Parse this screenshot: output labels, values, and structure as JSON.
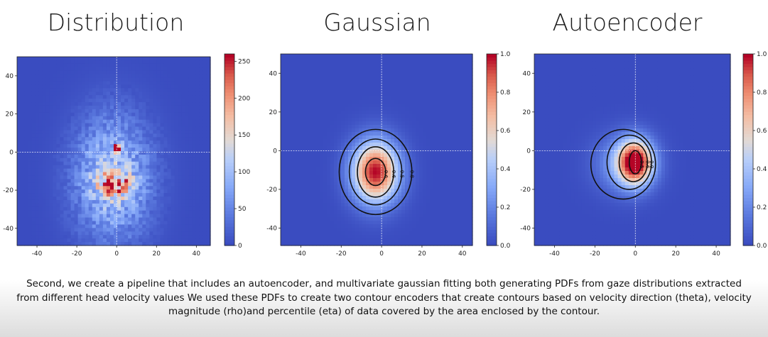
{
  "chart_data": [
    {
      "type": "heatmap",
      "title": "Distribution",
      "x_ticks": [
        -40,
        -20,
        0,
        20,
        40
      ],
      "y_ticks": [
        40,
        20,
        0,
        -20,
        -40
      ],
      "xlim": [
        -50,
        47
      ],
      "ylim": [
        -49,
        50
      ],
      "colormap": "coolwarm",
      "colorbar": {
        "ticks": [
          "0",
          "50",
          "100",
          "150",
          "200",
          "250"
        ],
        "range": [
          0,
          260
        ]
      },
      "blobs": [
        {
          "cx": -2,
          "cy": -14,
          "sx": 13,
          "sy": 22,
          "peak": 0.45
        },
        {
          "cx": 0,
          "cy": 2,
          "sx": 1.2,
          "sy": 1.2,
          "peak": 1.0
        },
        {
          "cx": -1,
          "cy": -17,
          "sx": 6,
          "sy": 4,
          "peak": 0.55
        }
      ],
      "reference_lines": {
        "x": 0,
        "y": 0
      },
      "contours": []
    },
    {
      "type": "heatmap",
      "title": "Gaussian",
      "x_ticks": [
        -40,
        -20,
        0,
        20,
        40
      ],
      "y_ticks": [
        40,
        20,
        0,
        -20,
        -40
      ],
      "xlim": [
        -50,
        45
      ],
      "ylim": [
        -49,
        50
      ],
      "colormap": "coolwarm",
      "colorbar": {
        "ticks": [
          "0.0",
          "0.2",
          "0.4",
          "0.6",
          "0.8",
          "1.0"
        ],
        "range": [
          0,
          1
        ]
      },
      "blobs": [
        {
          "cx": -3,
          "cy": -11,
          "sx": 8,
          "sy": 11,
          "peak": 1.0
        }
      ],
      "reference_lines": {
        "x": 0,
        "y": 0
      },
      "contours": [
        {
          "label": "0.6",
          "cx": -3,
          "cy": -11,
          "rx": 5,
          "ry": 7
        },
        {
          "label": "0.6",
          "cx": -3,
          "cy": -11,
          "rx": 9,
          "ry": 13
        },
        {
          "label": "0.5",
          "cx": -3,
          "cy": -11,
          "rx": 13,
          "ry": 17
        },
        {
          "label": "0.8",
          "cx": -3,
          "cy": -11,
          "rx": 18,
          "ry": 22
        }
      ]
    },
    {
      "type": "heatmap",
      "title": "Autoencoder",
      "x_ticks": [
        -40,
        -20,
        0,
        20,
        40
      ],
      "y_ticks": [
        40,
        20,
        0,
        -20,
        -40
      ],
      "xlim": [
        -50,
        47
      ],
      "ylim": [
        -49,
        50
      ],
      "colormap": "coolwarm",
      "colorbar": {
        "ticks": [
          "0.0",
          "0.2",
          "0.4",
          "0.6",
          "0.8",
          "1.0"
        ],
        "range": [
          0,
          1
        ]
      },
      "blobs": [
        {
          "cx": 0,
          "cy": -6,
          "sx": 6,
          "sy": 8,
          "peak": 1.0
        },
        {
          "cx": -6,
          "cy": -7,
          "sx": 10,
          "sy": 10,
          "peak": 0.25
        }
      ],
      "reference_lines": {
        "x": 0,
        "y": 0
      },
      "contours": [
        {
          "label": "0.5",
          "cx": 0,
          "cy": -6,
          "rx": 3,
          "ry": 6
        },
        {
          "label": "0.6",
          "cx": -1,
          "cy": -6,
          "rx": 7,
          "ry": 10
        },
        {
          "label": "0.9",
          "cx": -3,
          "cy": -6,
          "rx": 11,
          "ry": 14
        },
        {
          "label": "",
          "cx": -6,
          "cy": -7,
          "rx": 16,
          "ry": 18
        }
      ]
    }
  ],
  "caption": "Second, we create a pipeline that includes an autoencoder, and multivariate gaussian fitting both generating PDFs from gaze distributions extracted from different head velocity values We used these PDFs to create two contour encoders that create contours based on velocity direction (theta), velocity magnitude (rho)and percentile (eta) of data covered by the area enclosed by the contour."
}
